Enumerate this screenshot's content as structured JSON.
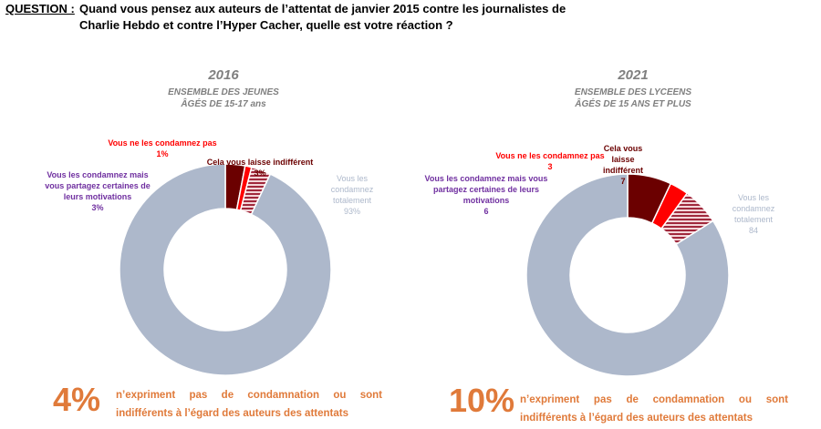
{
  "question": {
    "label": "QUESTION :",
    "line1": "Quand vous pensez aux auteurs de l’attentat de janvier 2015 contre les journalistes de",
    "line2": "Charlie Hebdo et contre l’Hyper Cacher, quelle est votre réaction ?"
  },
  "colors": {
    "condamnez": "#adb8cb",
    "partagez": "#a0283c",
    "ne_condamnez": "#ff0000",
    "indifferent": "#6b0000",
    "purple_text": "#7030a0",
    "accent": "#e07a3a"
  },
  "chart_data": [
    {
      "type": "pie",
      "title": "2016",
      "subtitle": "ENSEMBLE DES JEUNES\nÂGÉS DE 15-17 ans",
      "slices": [
        {
          "label": "Cela vous laisse indifférent",
          "value": 3,
          "display": "3%"
        },
        {
          "label": "Vous ne les condamnez pas",
          "value": 1,
          "display": "1%"
        },
        {
          "label": "Vous les condamnez mais vous partagez certaines de leurs motivations",
          "value": 3,
          "display": "3%"
        },
        {
          "label": "Vous les condamnez totalement",
          "value": 93,
          "display": "93%"
        }
      ],
      "headline": "4%",
      "footnote": "n’expriment pas de condamnation ou sont indifférents à l’égard des auteurs des attentats"
    },
    {
      "type": "pie",
      "title": "2021",
      "subtitle": "ENSEMBLE DES LYCEENS\nÂGÉS DE 15 ANS ET PLUS",
      "slices": [
        {
          "label": "Cela vous laisse indifférent",
          "value": 7,
          "display": "7"
        },
        {
          "label": "Vous ne les condamnez pas",
          "value": 3,
          "display": "3"
        },
        {
          "label": "Vous les condamnez mais vous partagez certaines de leurs motivations",
          "value": 6,
          "display": "6"
        },
        {
          "label": "Vous les condamnez totalement",
          "value": 84,
          "display": "84"
        }
      ],
      "headline": "10%",
      "footnote": "n’expriment pas de condamnation ou sont indifférents à l’égard des auteurs des attentats"
    }
  ]
}
